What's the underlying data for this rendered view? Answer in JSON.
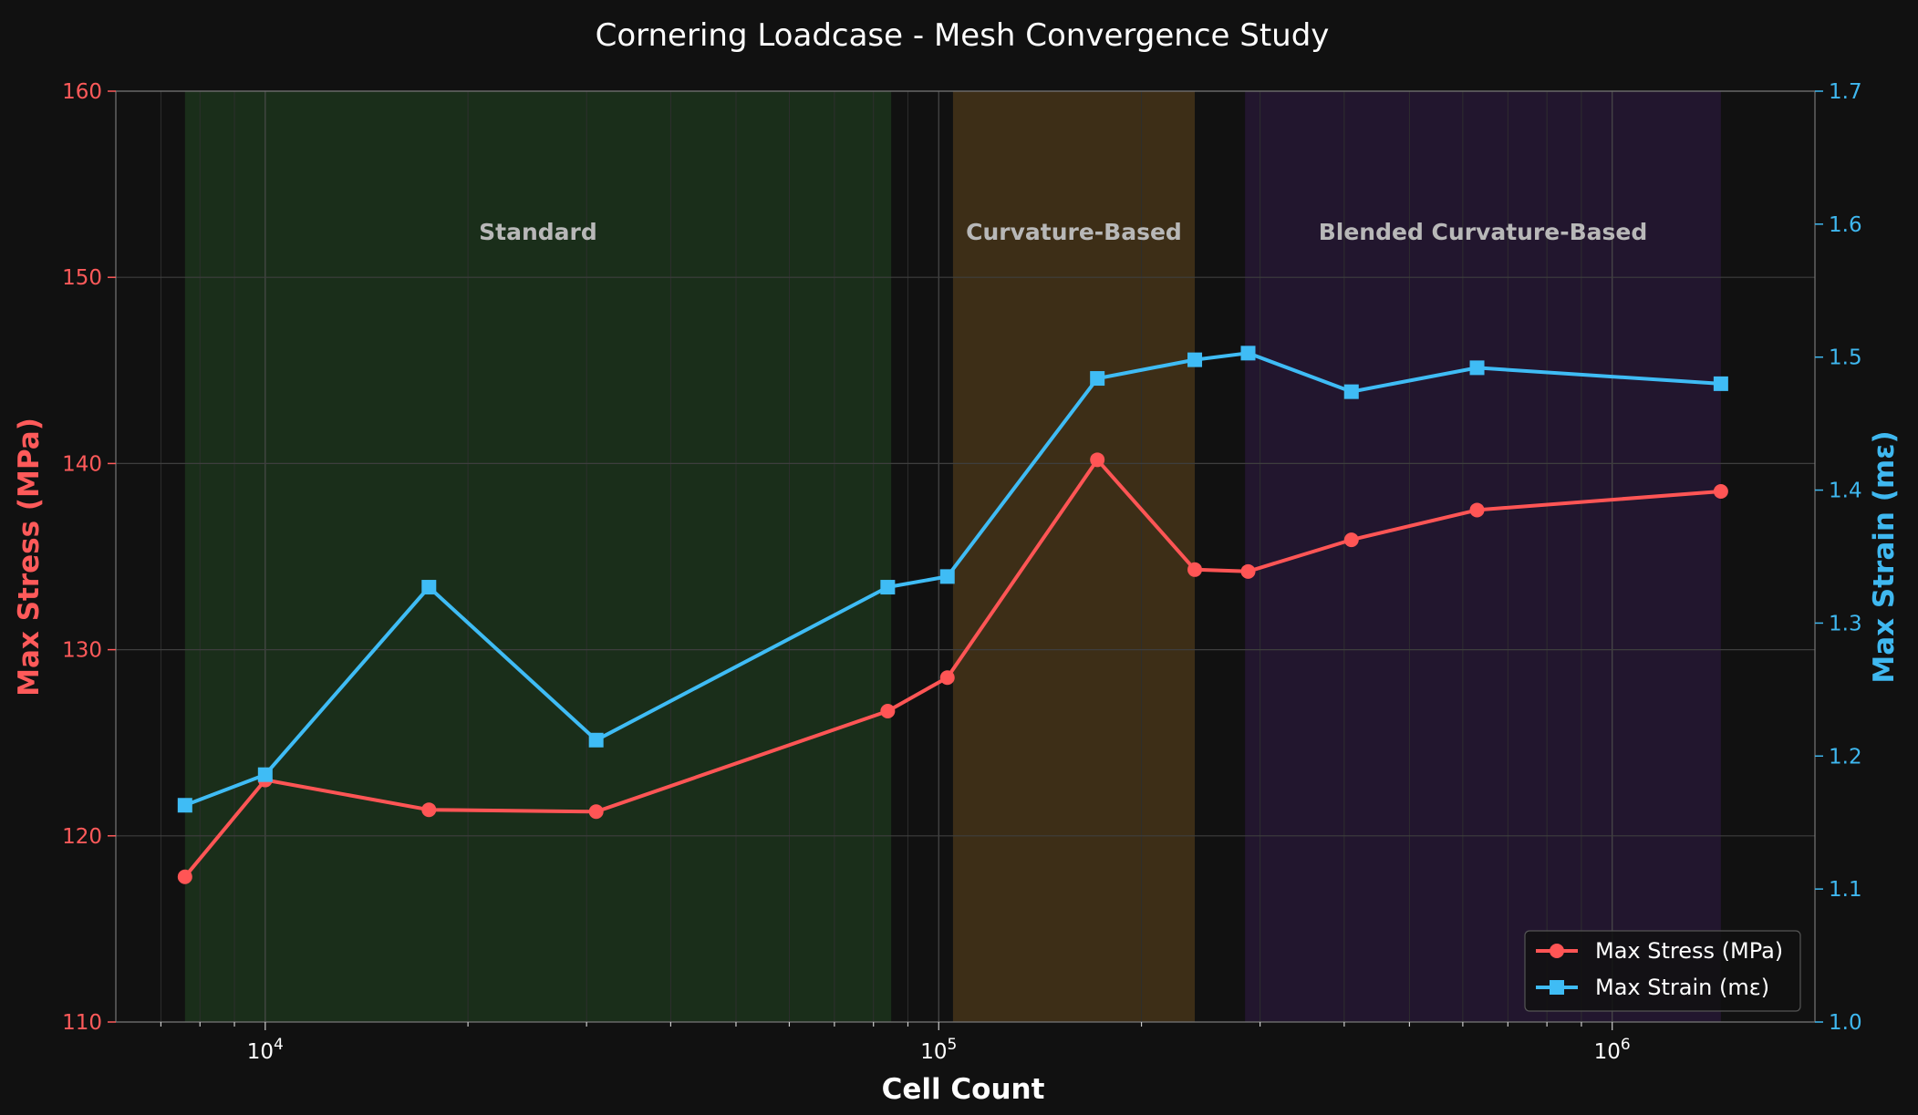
{
  "chart_data": {
    "type": "line",
    "title": "Cornering Loadcase - Mesh Convergence Study",
    "xlabel": "Cell Count",
    "ylabel_left": "Max Stress (MPa)",
    "ylabel_right": "Max Strain (mε)",
    "x_scale": "log",
    "xlim": [
      6000,
      2000000
    ],
    "ylim_left": [
      110,
      160
    ],
    "ylim_right": [
      1.0,
      1.7
    ],
    "grid": true,
    "legend_position": "lower-right",
    "x_tick_labels": [
      {
        "value": 10000,
        "label": "10",
        "exp": "4"
      },
      {
        "value": 100000,
        "label": "10",
        "exp": "5"
      },
      {
        "value": 1000000,
        "label": "10",
        "exp": "6"
      }
    ],
    "y_left_ticks": [
      "110",
      "120",
      "130",
      "140",
      "150",
      "160"
    ],
    "y_right_ticks": [
      "1.0",
      "1.1",
      "1.2",
      "1.3",
      "1.4",
      "1.5",
      "1.6",
      "1.7"
    ],
    "regions": [
      {
        "label": "Standard",
        "x_start": 7600,
        "x_end": 85000,
        "color": "#1a2e1a"
      },
      {
        "label": "Curvature-Based",
        "x_start": 105000,
        "x_end": 240000,
        "color": "#3d2e17"
      },
      {
        "label": "Blended Curvature-Based",
        "x_start": 285000,
        "x_end": 1450000,
        "color": "#22162e"
      }
    ],
    "series": [
      {
        "name": "Max Stress (MPa)",
        "axis": "left",
        "color": "#ff5555",
        "marker": "circle",
        "x": [
          7600,
          10000,
          17500,
          31000,
          84000,
          103000,
          172000,
          240000,
          288000,
          410000,
          630000,
          1450000
        ],
        "y": [
          117.8,
          123.0,
          121.4,
          121.3,
          126.7,
          128.5,
          140.2,
          134.3,
          134.2,
          135.9,
          137.5,
          138.5
        ]
      },
      {
        "name": "Max Strain (mε)",
        "axis": "right",
        "color": "#3fbcf5",
        "marker": "square",
        "x": [
          7600,
          10000,
          17500,
          31000,
          84000,
          103000,
          172000,
          240000,
          288000,
          410000,
          630000,
          1450000
        ],
        "y": [
          1.163,
          1.186,
          1.327,
          1.212,
          1.327,
          1.335,
          1.484,
          1.498,
          1.503,
          1.474,
          1.492,
          1.48
        ]
      }
    ]
  }
}
